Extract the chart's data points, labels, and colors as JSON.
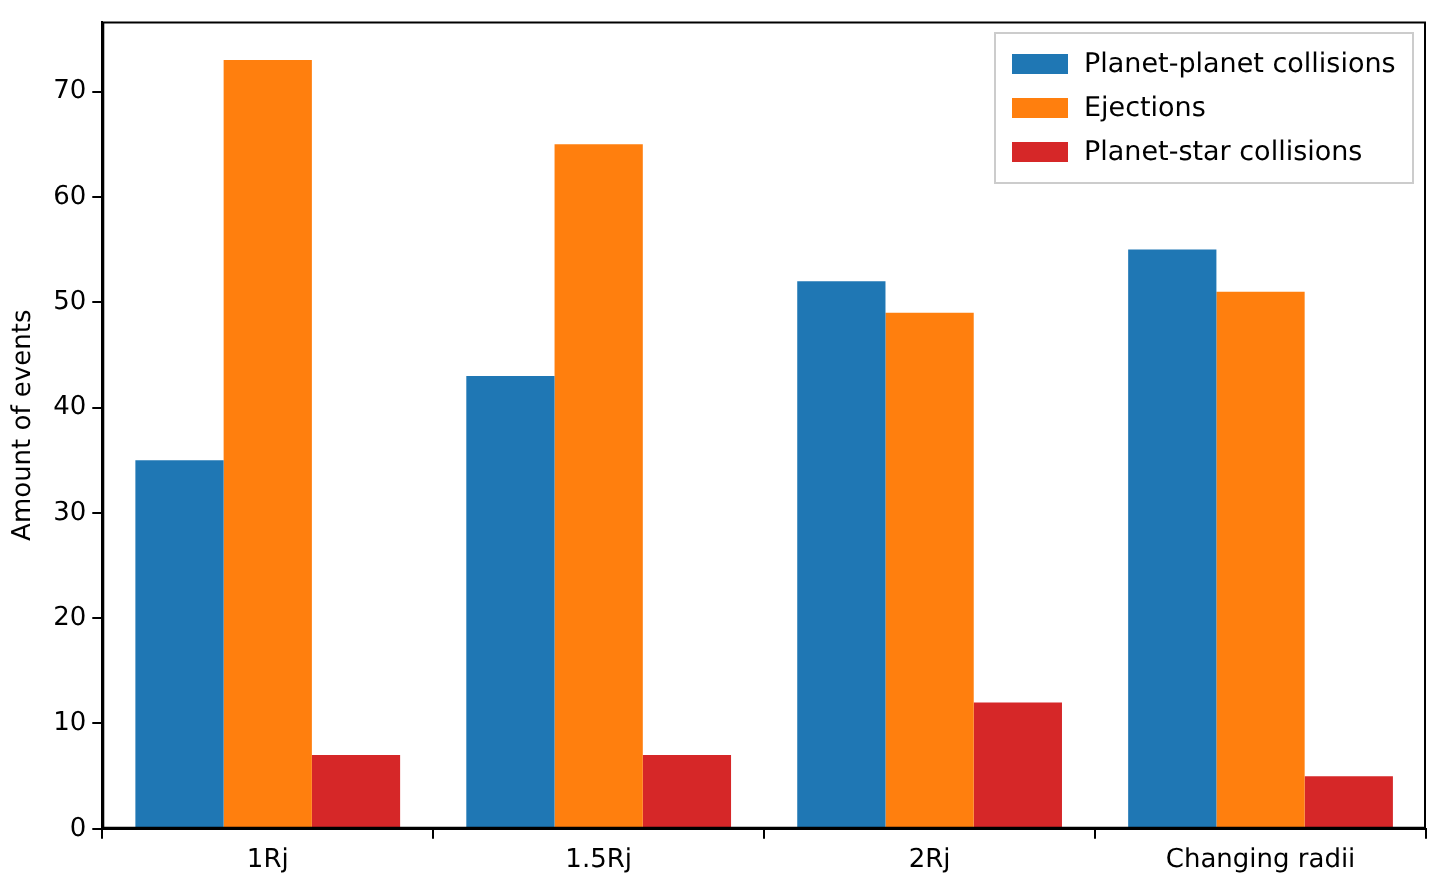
{
  "chart_data": {
    "type": "bar",
    "ylabel": "Amount of events",
    "categories": [
      "1Rj",
      "1.5Rj",
      "2Rj",
      "Changing radii"
    ],
    "series": [
      {
        "name": "Planet-planet collisions",
        "color": "#1f77b4",
        "values": [
          35,
          43,
          52,
          55
        ]
      },
      {
        "name": "Ejections",
        "color": "#ff7f0e",
        "values": [
          73,
          65,
          49,
          51
        ]
      },
      {
        "name": "Planet-star collisions",
        "color": "#d62728",
        "values": [
          7,
          7,
          12,
          5
        ]
      }
    ],
    "ylim": [
      0,
      76.65
    ],
    "yticks": [
      0,
      10,
      20,
      30,
      40,
      50,
      60,
      70
    ],
    "grid": false,
    "legend": "top right"
  }
}
